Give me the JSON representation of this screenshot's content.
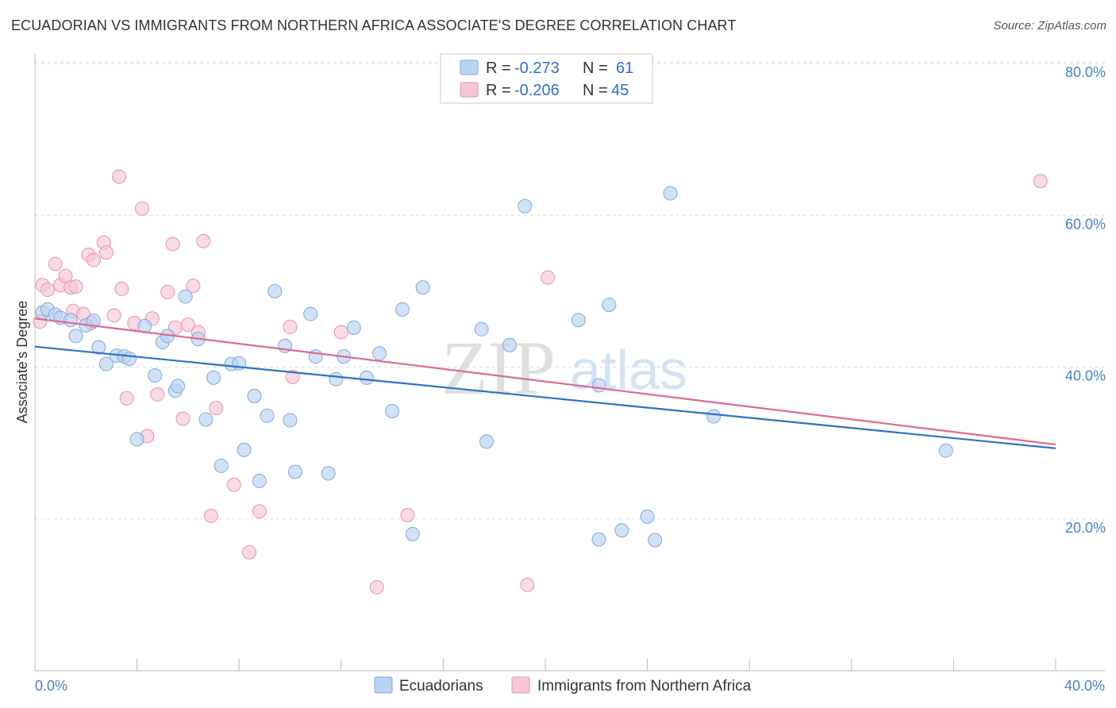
{
  "header": {
    "title": "ECUADORIAN VS IMMIGRANTS FROM NORTHERN AFRICA ASSOCIATE'S DEGREE CORRELATION CHART",
    "source": "Source: ZipAtlas.com"
  },
  "watermark": {
    "zip": "ZIP",
    "atlas": "atlas"
  },
  "legend": {
    "rows": [
      {
        "r_label": "R =",
        "r_value": "-0.273",
        "n_label": "N =",
        "n_value": "61"
      },
      {
        "r_label": "R =",
        "r_value": "-0.206",
        "n_label": "N =",
        "n_value": "45"
      }
    ]
  },
  "colors": {
    "ecuadorians_fill": "#b9d3f3",
    "ecuadorians_stroke": "#7fa9e0",
    "ecuadorians_line": "#2f6fc9",
    "africa_fill": "#f7c6d6",
    "africa_stroke": "#e992b0",
    "africa_line": "#e0688f",
    "tick_text": "#4a7fc8"
  },
  "chart_data": {
    "type": "scatter",
    "title": "ECUADORIAN VS IMMIGRANTS FROM NORTHERN AFRICA ASSOCIATE'S DEGREE CORRELATION CHART",
    "xlabel": "",
    "ylabel": "Associate's Degree",
    "xlim": [
      0,
      40
    ],
    "ylim": [
      0,
      80
    ],
    "x_tick_labels": [
      "0.0%",
      "40.0%"
    ],
    "y_ticks": [
      20,
      40,
      60,
      80
    ],
    "y_tick_labels": [
      "20.0%",
      "40.0%",
      "60.0%",
      "80.0%"
    ],
    "grid": "horizontal dashed",
    "legend_position": "top-center",
    "series": [
      {
        "name": "Ecuadorians",
        "R": -0.273,
        "N": 61,
        "trend": {
          "x": [
            0,
            40
          ],
          "y": [
            42.7,
            29.3
          ]
        },
        "points": [
          [
            0.3,
            47.2
          ],
          [
            0.5,
            47.6
          ],
          [
            0.8,
            46.9
          ],
          [
            1.0,
            46.5
          ],
          [
            1.4,
            46.2
          ],
          [
            1.6,
            44.1
          ],
          [
            2.0,
            45.5
          ],
          [
            2.3,
            46.1
          ],
          [
            2.5,
            42.6
          ],
          [
            2.8,
            40.4
          ],
          [
            3.2,
            41.5
          ],
          [
            3.5,
            41.4
          ],
          [
            3.7,
            41.1
          ],
          [
            4.0,
            30.5
          ],
          [
            4.3,
            45.4
          ],
          [
            4.7,
            38.9
          ],
          [
            5.0,
            43.3
          ],
          [
            5.2,
            44.1
          ],
          [
            5.5,
            36.9
          ],
          [
            5.9,
            49.3
          ],
          [
            5.6,
            37.5
          ],
          [
            6.4,
            43.7
          ],
          [
            6.7,
            33.1
          ],
          [
            7.0,
            38.6
          ],
          [
            7.3,
            27.0
          ],
          [
            7.7,
            40.4
          ],
          [
            8.0,
            40.5
          ],
          [
            8.2,
            29.1
          ],
          [
            8.6,
            36.2
          ],
          [
            8.8,
            25.0
          ],
          [
            9.1,
            33.6
          ],
          [
            9.4,
            50.0
          ],
          [
            9.8,
            42.8
          ],
          [
            10.0,
            33.0
          ],
          [
            10.2,
            26.2
          ],
          [
            10.8,
            47.0
          ],
          [
            11.0,
            41.4
          ],
          [
            11.5,
            26.0
          ],
          [
            11.8,
            38.4
          ],
          [
            12.1,
            41.4
          ],
          [
            12.5,
            45.2
          ],
          [
            13.0,
            38.6
          ],
          [
            13.5,
            41.8
          ],
          [
            14.0,
            34.2
          ],
          [
            14.4,
            47.6
          ],
          [
            14.8,
            18.0
          ],
          [
            15.2,
            50.5
          ],
          [
            17.5,
            45.0
          ],
          [
            17.7,
            30.2
          ],
          [
            18.6,
            42.9
          ],
          [
            19.2,
            61.2
          ],
          [
            21.3,
            46.2
          ],
          [
            22.1,
            17.3
          ],
          [
            22.1,
            37.6
          ],
          [
            22.5,
            48.2
          ],
          [
            23.0,
            18.5
          ],
          [
            24.0,
            20.3
          ],
          [
            24.3,
            17.2
          ],
          [
            24.9,
            62.9
          ],
          [
            26.6,
            33.5
          ],
          [
            35.7,
            29.0
          ]
        ]
      },
      {
        "name": "Immigrants from Northern Africa",
        "R": -0.206,
        "N": 45,
        "trend": {
          "x": [
            0,
            40
          ],
          "y": [
            46.4,
            29.8
          ]
        },
        "points": [
          [
            0.2,
            46.0
          ],
          [
            0.3,
            50.8
          ],
          [
            0.5,
            50.2
          ],
          [
            0.8,
            53.6
          ],
          [
            1.0,
            50.8
          ],
          [
            1.2,
            52.0
          ],
          [
            1.4,
            50.5
          ],
          [
            1.5,
            47.4
          ],
          [
            1.6,
            50.6
          ],
          [
            1.9,
            47.0
          ],
          [
            2.2,
            45.8
          ],
          [
            2.1,
            54.8
          ],
          [
            2.3,
            54.1
          ],
          [
            2.7,
            56.4
          ],
          [
            2.8,
            55.1
          ],
          [
            3.1,
            46.8
          ],
          [
            3.3,
            65.1
          ],
          [
            3.4,
            50.3
          ],
          [
            3.6,
            35.9
          ],
          [
            3.9,
            45.8
          ],
          [
            4.2,
            60.9
          ],
          [
            4.4,
            30.9
          ],
          [
            4.6,
            46.4
          ],
          [
            4.8,
            36.4
          ],
          [
            5.2,
            49.9
          ],
          [
            5.4,
            56.2
          ],
          [
            5.5,
            45.2
          ],
          [
            5.8,
            33.2
          ],
          [
            6.0,
            45.6
          ],
          [
            6.2,
            50.7
          ],
          [
            6.4,
            44.6
          ],
          [
            6.6,
            56.6
          ],
          [
            6.9,
            20.4
          ],
          [
            7.1,
            34.6
          ],
          [
            7.8,
            24.5
          ],
          [
            8.4,
            15.6
          ],
          [
            8.8,
            21.0
          ],
          [
            10.0,
            45.3
          ],
          [
            10.1,
            38.7
          ],
          [
            12.0,
            44.6
          ],
          [
            13.4,
            11.0
          ],
          [
            14.6,
            20.5
          ],
          [
            19.3,
            11.3
          ],
          [
            20.1,
            51.8
          ],
          [
            39.4,
            64.5
          ]
        ]
      }
    ]
  },
  "bottom_legend": {
    "items": [
      "Ecuadorians",
      "Immigrants from Northern Africa"
    ]
  }
}
